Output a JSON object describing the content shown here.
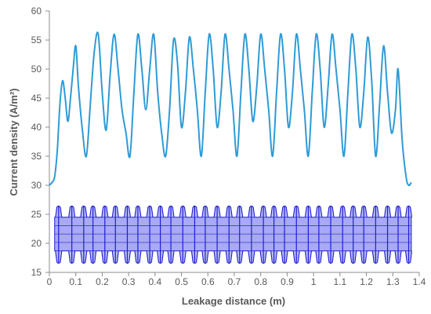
{
  "chart_data": {
    "type": "line",
    "xlabel": "Leakage distance (m)",
    "ylabel": "Current density (A/m²)",
    "xlim": [
      0,
      1.4
    ],
    "ylim": [
      15,
      60
    ],
    "xticks": [
      "0",
      "0.1",
      "0.2",
      "0.3",
      "0.4",
      "0.5",
      "0.6",
      "0.7",
      "0.8",
      "0.9",
      "1",
      "1.1",
      "1.2",
      "1.3",
      "1.4"
    ],
    "yticks": [
      "15",
      "20",
      "25",
      "30",
      "35",
      "40",
      "45",
      "50",
      "55",
      "60"
    ],
    "grid": false,
    "colors": {
      "curve": "#2E9BD6",
      "insulator": "#1F1FD6",
      "insulator_fill": "#8C8CF0",
      "axis": "#8c8c8c"
    },
    "series": [
      {
        "x": [
          0,
          0.01,
          0.02,
          0.03,
          0.04,
          0.05,
          0.06,
          0.07,
          0.08,
          0.09,
          0.1,
          0.11,
          0.125,
          0.14,
          0.155,
          0.17,
          0.185,
          0.2,
          0.215,
          0.23,
          0.245,
          0.26,
          0.275,
          0.29,
          0.305,
          0.32,
          0.335,
          0.35,
          0.365,
          0.38,
          0.395,
          0.41,
          0.425,
          0.44,
          0.455,
          0.47,
          0.485,
          0.5,
          0.515,
          0.53,
          0.545,
          0.56,
          0.575,
          0.59,
          0.605,
          0.62,
          0.635,
          0.65,
          0.665,
          0.68,
          0.695,
          0.71,
          0.725,
          0.74,
          0.755,
          0.77,
          0.785,
          0.8,
          0.815,
          0.83,
          0.845,
          0.86,
          0.875,
          0.89,
          0.905,
          0.92,
          0.935,
          0.95,
          0.965,
          0.98,
          0.995,
          1.01,
          1.025,
          1.04,
          1.055,
          1.07,
          1.085,
          1.1,
          1.115,
          1.13,
          1.145,
          1.16,
          1.175,
          1.19,
          1.205,
          1.22,
          1.235,
          1.25,
          1.265,
          1.28,
          1.295,
          1.31,
          1.32,
          1.335,
          1.35,
          1.36,
          1.37
        ],
        "y": [
          30,
          30.5,
          31.5,
          36,
          44,
          48,
          45,
          41,
          45,
          50,
          54,
          47,
          39.5,
          35,
          44,
          53,
          56,
          46,
          39.5,
          49,
          56,
          50,
          43,
          39,
          35,
          46,
          56,
          50,
          43,
          50,
          56,
          46,
          39,
          35,
          43,
          55,
          51,
          40,
          46,
          55.5,
          50,
          43,
          35,
          46,
          56,
          50,
          40,
          46,
          56,
          50,
          43,
          35,
          46,
          56,
          50,
          41,
          47,
          56,
          50,
          43,
          35,
          46,
          56,
          50,
          40,
          46,
          56,
          50,
          43,
          35,
          46,
          56,
          50,
          40,
          47,
          56,
          50,
          43,
          35,
          46,
          56,
          50,
          40,
          46,
          55.5,
          48,
          35,
          44,
          54,
          46,
          39,
          43,
          50,
          38,
          31.5,
          30,
          30.5
        ]
      }
    ],
    "insulator": {
      "x_start": 0.02,
      "x_end": 1.37,
      "core_low": 18.7,
      "core_high": 24.5,
      "tip_low": 16.5,
      "tip_high": 26.5,
      "sheds": [
        0.035,
        0.085,
        0.13,
        0.165,
        0.21,
        0.25,
        0.295,
        0.335,
        0.38,
        0.42,
        0.46,
        0.505,
        0.55,
        0.59,
        0.635,
        0.68,
        0.72,
        0.765,
        0.81,
        0.85,
        0.89,
        0.935,
        0.98,
        1.02,
        1.065,
        1.11,
        1.15,
        1.19,
        1.235,
        1.28,
        1.32,
        1.36
      ]
    }
  }
}
